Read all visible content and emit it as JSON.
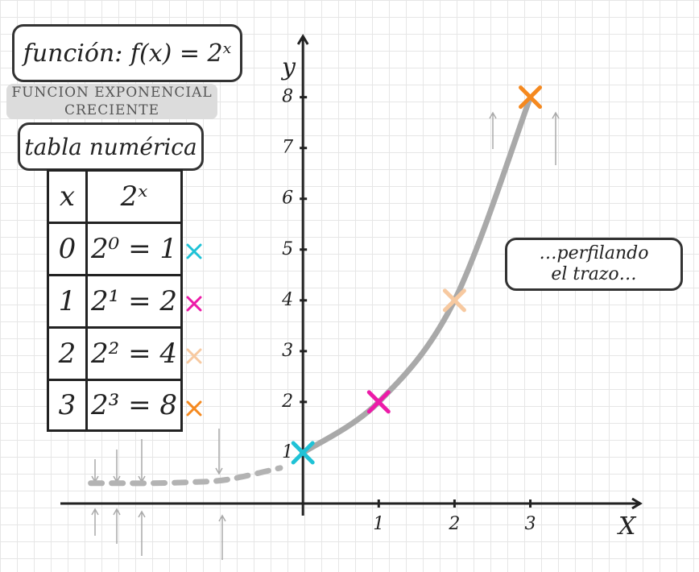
{
  "chart_data": {
    "type": "line",
    "title": "función: f(x) = 2ˣ",
    "subtitle": "FUNCION EXPONENCIAL CRECIENTE",
    "xlabel": "X",
    "ylabel": "y",
    "annotation": "…perfilando el trazo…",
    "xlim": [
      -3.2,
      4.45
    ],
    "ylim": [
      0,
      9.2
    ],
    "xticks": [
      1,
      2,
      3
    ],
    "yticks": [
      1,
      2,
      3,
      4,
      5,
      6,
      7,
      8
    ],
    "series": [
      {
        "x": [
          0,
          1,
          2,
          3
        ],
        "values": [
          1,
          2,
          4,
          8
        ],
        "color": "#a9a9a9",
        "marker_colors": [
          "#1fc2d6",
          "#ec1ba8",
          "#f7c9a0",
          "#f5891f"
        ]
      },
      {
        "x": [
          -2.8,
          -2.4,
          -2,
          -1.5,
          -1,
          -0.3
        ],
        "values": [
          0.4,
          0.4,
          0.4,
          0.42,
          0.47,
          0.7
        ],
        "color": "#b3b3b3",
        "dashed": true
      }
    ]
  },
  "table": {
    "title": "tabla numérica",
    "header": [
      "x",
      "2ˣ"
    ],
    "rows": [
      [
        "0",
        "2⁰ = 1"
      ],
      [
        "1",
        "2¹ = 2"
      ],
      [
        "2",
        "2² = 4"
      ],
      [
        "3",
        "2³ = 8"
      ]
    ]
  }
}
